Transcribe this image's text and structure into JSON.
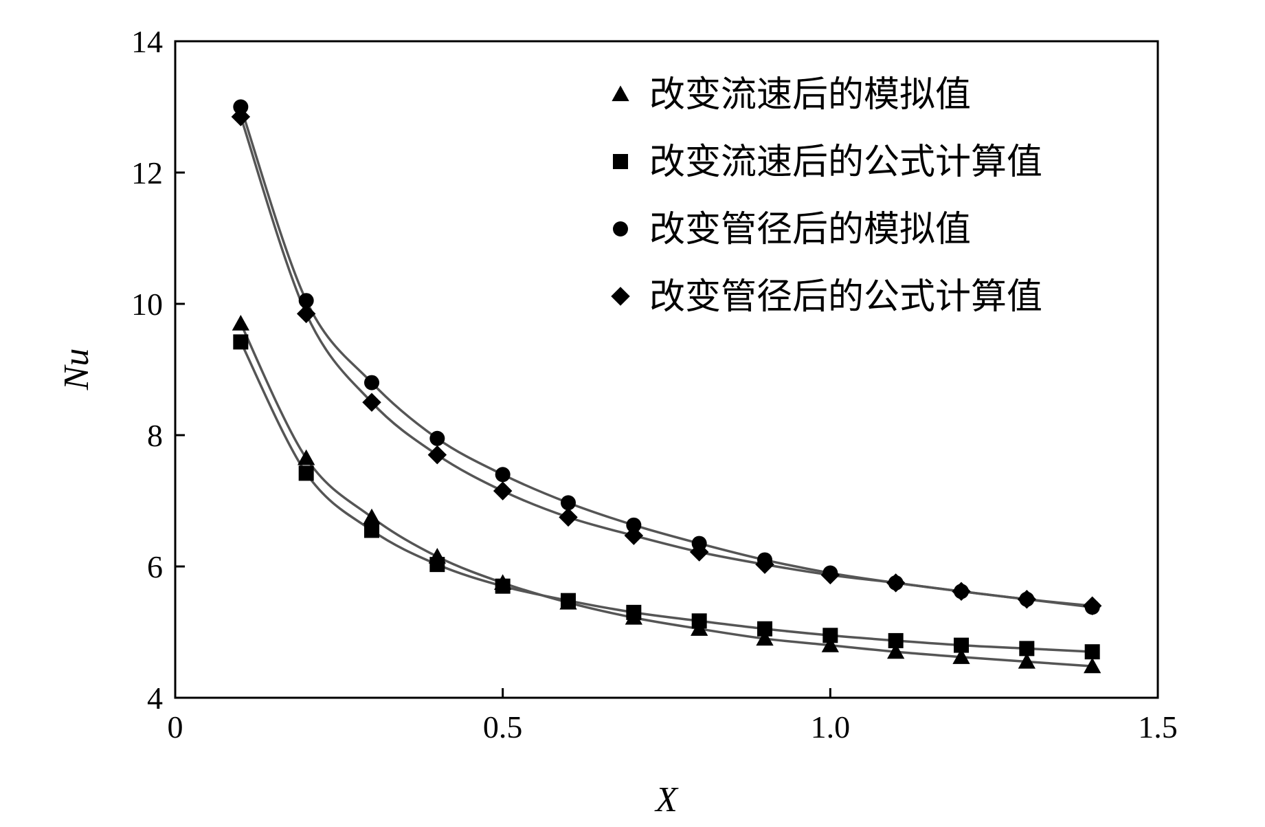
{
  "chart_data": {
    "type": "line",
    "xlabel": "X",
    "ylabel": "Nu",
    "xlim": [
      0,
      1.5
    ],
    "ylim": [
      4,
      14
    ],
    "xticks": [
      0,
      0.5,
      1.0,
      1.5
    ],
    "xtick_labels": [
      "0",
      "0.5",
      "1.0",
      "1.5"
    ],
    "yticks": [
      4,
      6,
      8,
      10,
      12,
      14
    ],
    "ytick_labels": [
      "4",
      "6",
      "8",
      "10",
      "12",
      "14"
    ],
    "grid": false,
    "legend_position": "top-right",
    "x": [
      0.1,
      0.2,
      0.3,
      0.4,
      0.5,
      0.6,
      0.7,
      0.8,
      0.9,
      1.0,
      1.1,
      1.2,
      1.3,
      1.4
    ],
    "series": [
      {
        "name": "改变流速后的模拟值",
        "marker": "triangle",
        "values": [
          9.7,
          7.65,
          6.75,
          6.15,
          5.75,
          5.45,
          5.22,
          5.05,
          4.9,
          4.8,
          4.7,
          4.62,
          4.55,
          4.48
        ]
      },
      {
        "name": "改变流速后的公式计算值",
        "marker": "square",
        "values": [
          9.42,
          7.42,
          6.55,
          6.03,
          5.7,
          5.48,
          5.3,
          5.17,
          5.05,
          4.95,
          4.87,
          4.8,
          4.75,
          4.7
        ]
      },
      {
        "name": "改变管径后的模拟值",
        "marker": "circle",
        "values": [
          13.0,
          10.05,
          8.8,
          7.95,
          7.4,
          6.97,
          6.63,
          6.35,
          6.1,
          5.9,
          5.75,
          5.62,
          5.5,
          5.38
        ]
      },
      {
        "name": "改变管径后的公式计算值",
        "marker": "diamond",
        "values": [
          12.85,
          9.85,
          8.5,
          7.7,
          7.15,
          6.75,
          6.47,
          6.22,
          6.03,
          5.87,
          5.75,
          5.62,
          5.5,
          5.4
        ]
      }
    ],
    "colors": {
      "marker": "#000000",
      "line": "#555555",
      "axis": "#000000",
      "background": "#ffffff"
    }
  }
}
